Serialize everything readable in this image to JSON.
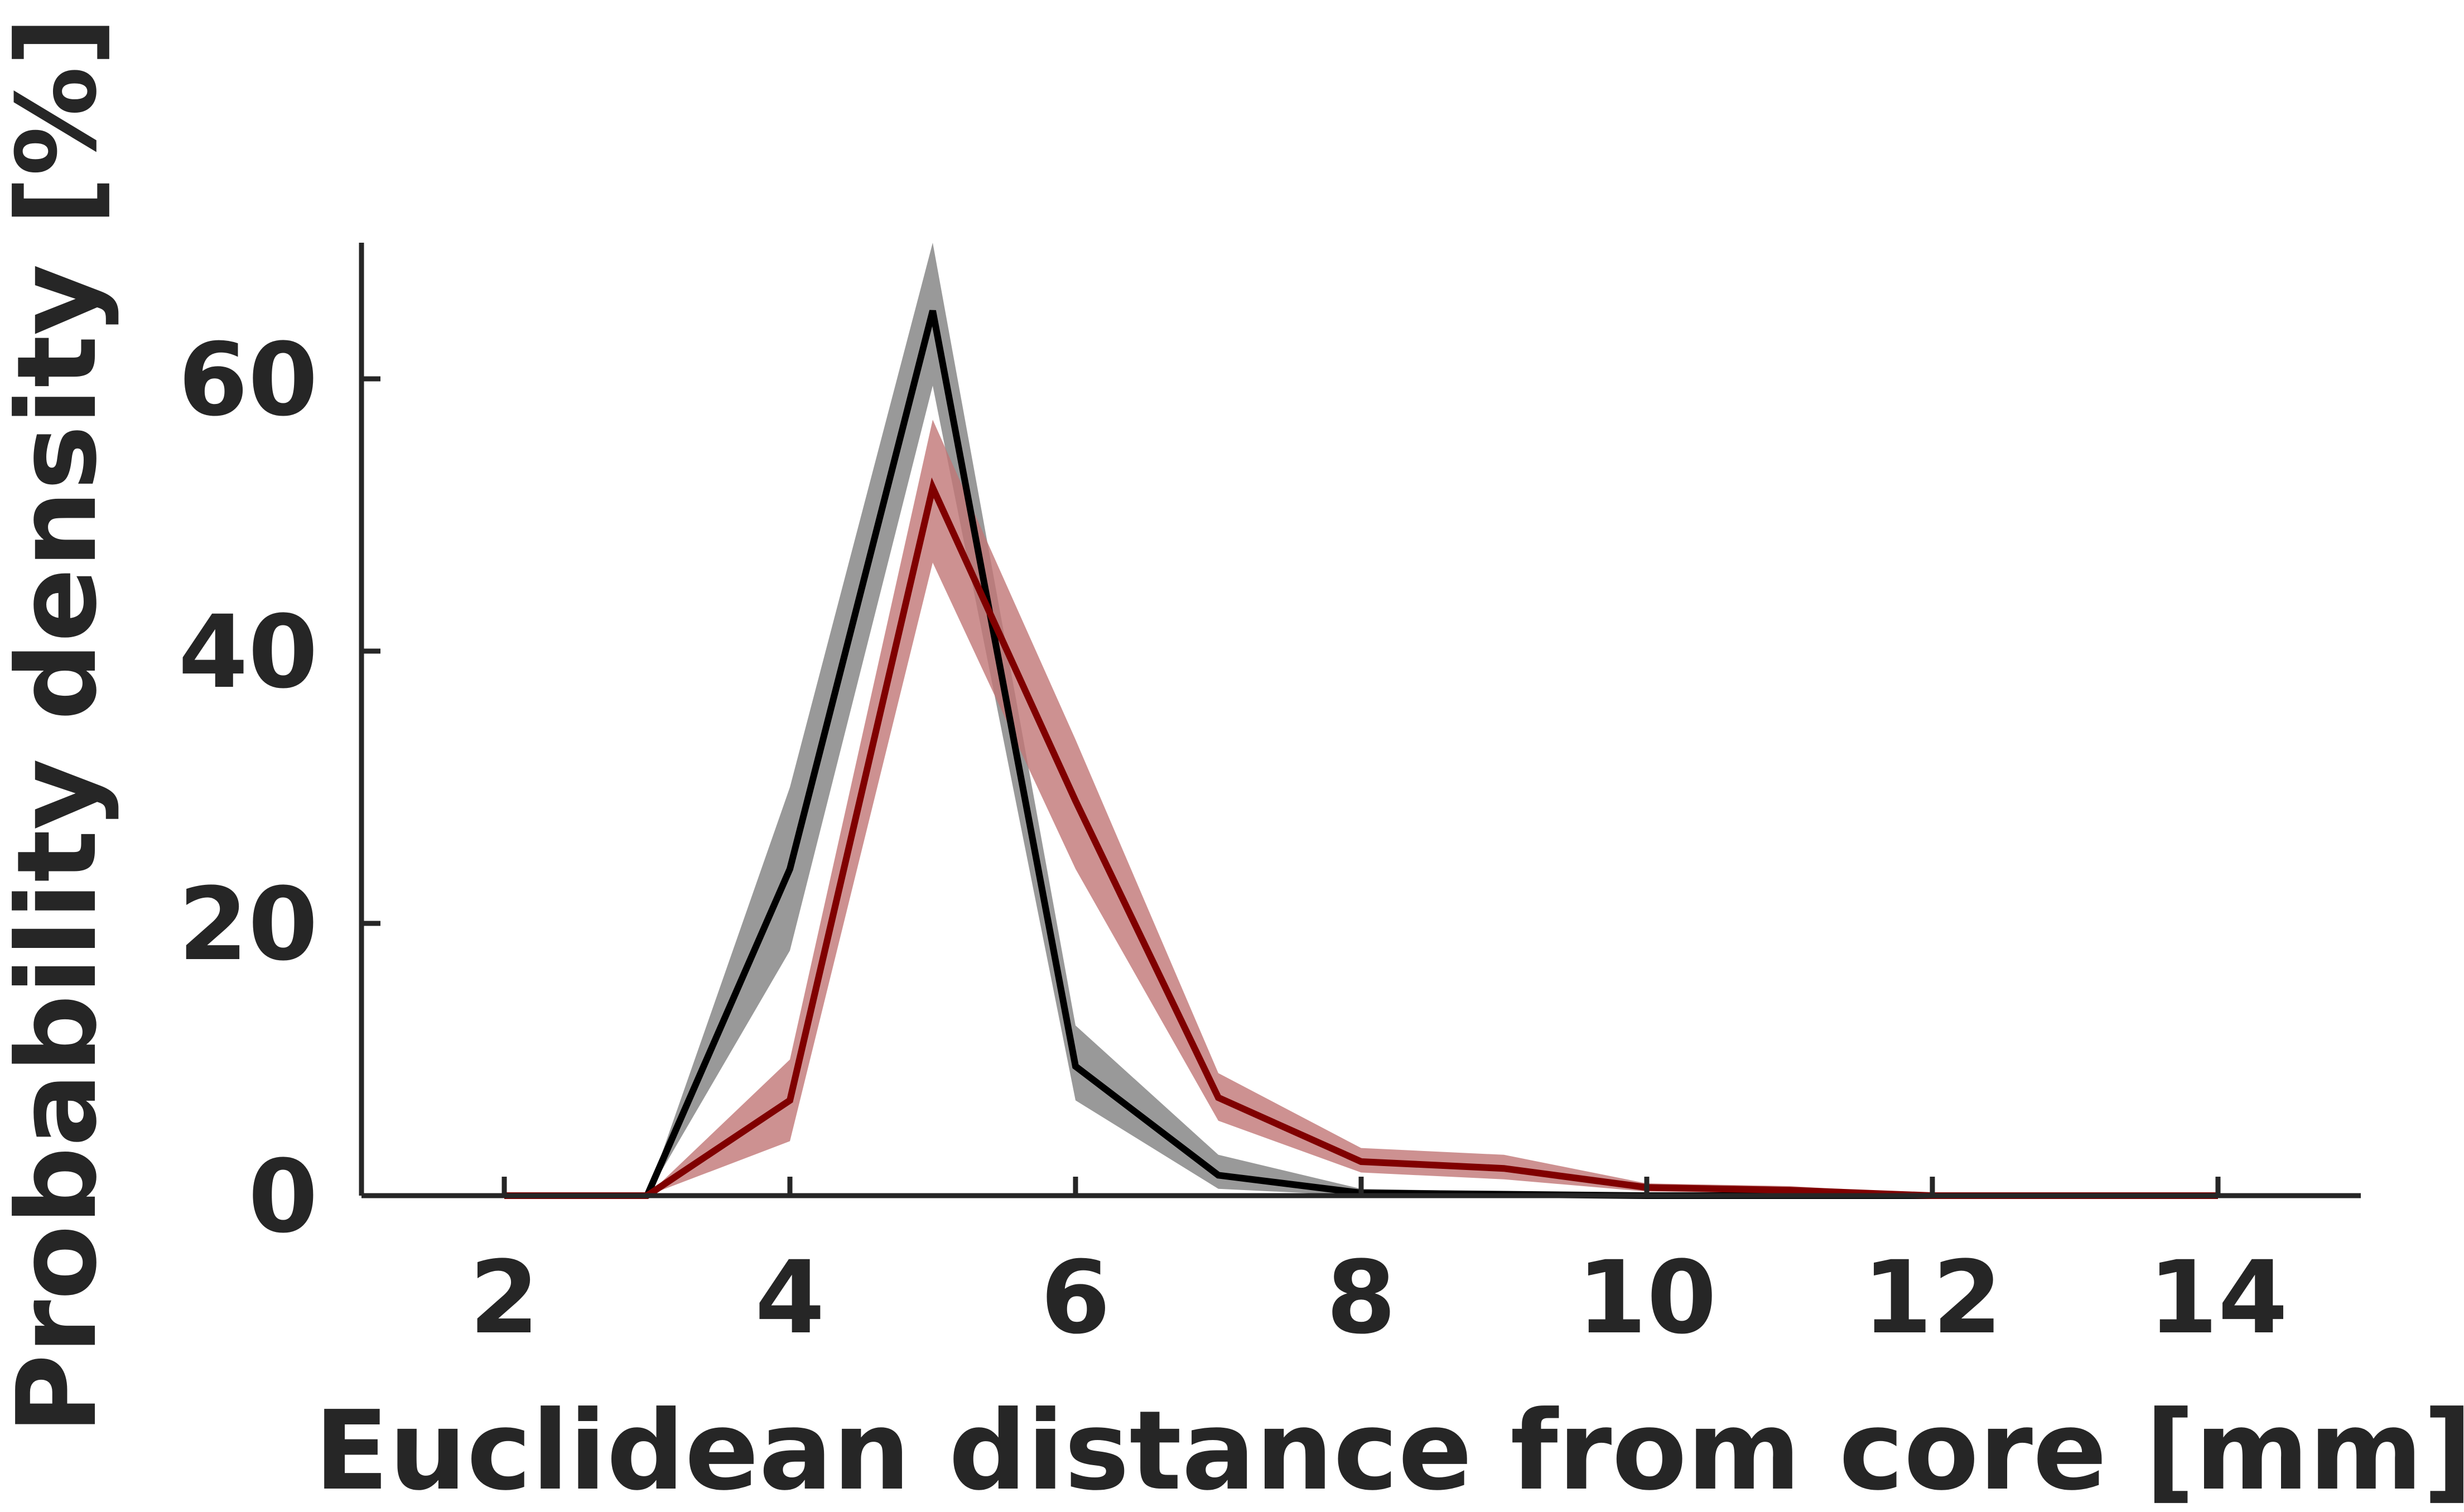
{
  "chart_data": {
    "type": "line",
    "title": "",
    "xlabel": "Euclidean distance from core [mm]",
    "ylabel": "Probability density [%]",
    "xlim": [
      1,
      15
    ],
    "ylim": [
      0,
      70
    ],
    "xticks": [
      2,
      4,
      6,
      8,
      10,
      12,
      14
    ],
    "yticks": [
      0,
      20,
      40,
      60
    ],
    "grid": false,
    "legend": "none",
    "series": [
      {
        "color": "#000000",
        "band_color": "#808080",
        "x": [
          3,
          4,
          5,
          6,
          7,
          8,
          9,
          10,
          11,
          12
        ],
        "y": [
          0,
          24,
          65,
          9.5,
          1.5,
          0.2,
          0.1,
          0,
          0,
          0
        ],
        "lower": [
          0,
          18,
          59.5,
          7,
          0.5,
          0,
          0,
          0,
          0,
          0
        ],
        "upper": [
          0,
          30,
          70,
          12.5,
          3,
          0.5,
          0.3,
          0.1,
          0,
          0
        ]
      },
      {
        "color": "#800000",
        "band_color": "#c07676",
        "x": [
          2,
          3,
          4,
          5,
          6,
          7,
          8,
          9,
          10,
          11,
          12,
          13,
          14
        ],
        "y": [
          0,
          0,
          7,
          52,
          29,
          7.2,
          2.5,
          2,
          0.6,
          0.4,
          0,
          0,
          0
        ],
        "lower": [
          0,
          0,
          4,
          46.5,
          24,
          5.5,
          1.7,
          1.2,
          0.3,
          0.2,
          0,
          0,
          0
        ],
        "upper": [
          0,
          0,
          10,
          57,
          33.5,
          9,
          3.5,
          3,
          0.9,
          0.7,
          0.1,
          0,
          0
        ]
      }
    ]
  }
}
